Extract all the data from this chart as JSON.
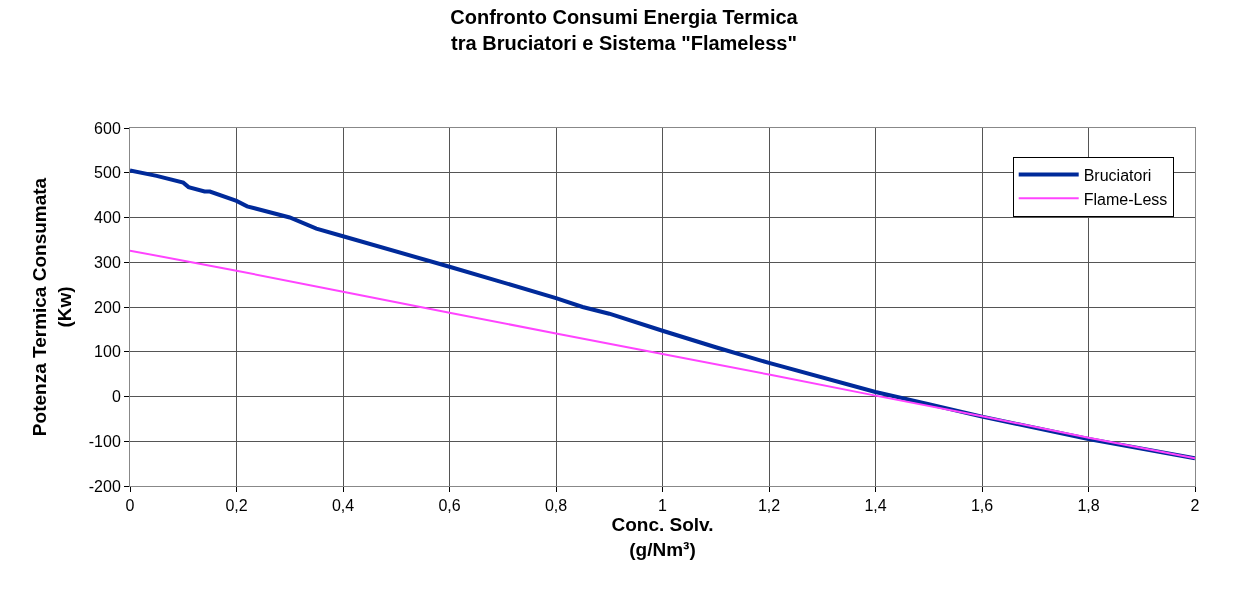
{
  "chart_data": {
    "type": "line",
    "title": "Confronto Consumi Energia Termica\ntra Bruciatori e Sistema \"Flameless\"",
    "xlabel": "Conc. Solv.\n(g/Nm³)",
    "ylabel": "Potenza Termica Consumata\n(Kw)",
    "series": [
      {
        "name": "Bruciatori",
        "color": "#002a9a",
        "x": [
          0,
          0.05,
          0.1,
          0.11,
          0.14,
          0.15,
          0.2,
          0.22,
          0.3,
          0.35,
          0.4,
          0.6,
          0.8,
          0.85,
          0.9,
          1.0,
          1.1,
          1.2,
          1.4,
          1.5,
          1.6,
          1.8,
          2.0
        ],
        "values": [
          505,
          493,
          478,
          468,
          458,
          458,
          437,
          425,
          400,
          375,
          358,
          290,
          220,
          200,
          185,
          147,
          110,
          75,
          10,
          -17,
          -45,
          -95,
          -138
        ]
      },
      {
        "name": "Flame-Less",
        "color": "#ff44ff",
        "x": [
          0,
          0.2,
          0.4,
          0.6,
          0.8,
          1.0,
          1.2,
          1.4,
          1.6,
          1.8,
          2.0
        ],
        "values": [
          326,
          281,
          234,
          187,
          141,
          95,
          49,
          2,
          -44,
          -92,
          -138
        ]
      }
    ],
    "xlim": [
      0,
      2
    ],
    "xticks": [
      0,
      {
        "value": 0.2,
        "label": "0,2"
      },
      {
        "value": 0.4,
        "label": "0,4"
      },
      {
        "value": 0.6,
        "label": "0,6"
      },
      {
        "value": 0.8,
        "label": "0,8"
      },
      1,
      {
        "value": 1.2,
        "label": "1,2"
      },
      {
        "value": 1.4,
        "label": "1,4"
      },
      {
        "value": 1.6,
        "label": "1,6"
      },
      {
        "value": 1.8,
        "label": "1,8"
      },
      2
    ],
    "ylim": [
      -200,
      600
    ],
    "yticks": [
      -200,
      -100,
      0,
      100,
      200,
      300,
      400,
      500,
      600
    ],
    "grid": true,
    "legend": "top right",
    "marker": "none",
    "line_style": "solid"
  }
}
